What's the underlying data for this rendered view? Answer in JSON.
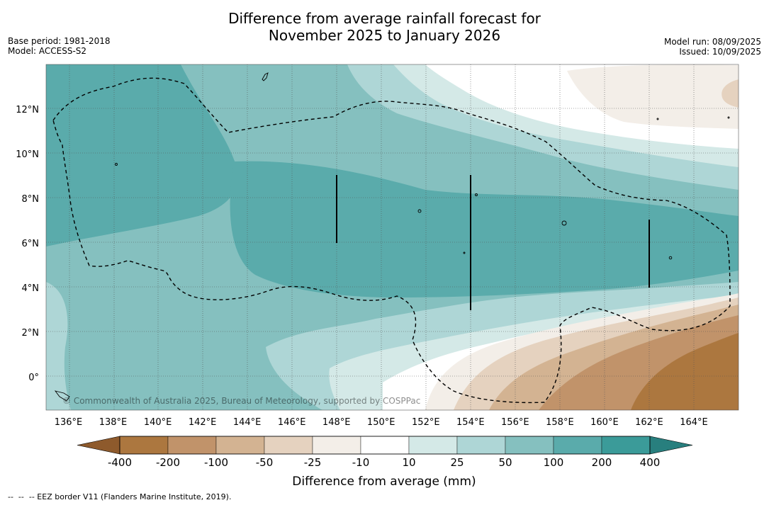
{
  "title_line1": "Difference from average rainfall forecast for",
  "title_line2": "November 2025 to January 2026",
  "base_period": "Base period: 1981-2018",
  "model": "Model: ACCESS-S2",
  "model_run": "Model run: 08/09/2025",
  "issued": "Issued: 10/09/2025",
  "copyright": "© Commonwealth of Australia 2025, Bureau of Meteorology, supported by COSPPac",
  "footnote": "--  --  -- EEZ border V11 (Flanders Marine Institute, 2019).",
  "map": {
    "lon_range": [
      135,
      166
    ],
    "lat_range": [
      -1.5,
      14
    ],
    "lon_ticks": [
      "136°E",
      "138°E",
      "140°E",
      "142°E",
      "144°E",
      "146°E",
      "148°E",
      "150°E",
      "152°E",
      "154°E",
      "156°E",
      "158°E",
      "160°E",
      "162°E",
      "164°E"
    ],
    "lat_ticks": [
      "12°N",
      "10°N",
      "8°N",
      "6°N",
      "4°N",
      "2°N",
      "0°"
    ],
    "gridlines": true
  },
  "legend": {
    "title": "Difference from average (mm)",
    "labels": [
      "-400",
      "-200",
      "-100",
      "-50",
      "-25",
      "-10",
      "10",
      "25",
      "50",
      "100",
      "200",
      "400"
    ],
    "colors": [
      "#8e5a2c",
      "#ac773f",
      "#c1936a",
      "#d3b392",
      "#e5d2bf",
      "#f3eee8",
      "#ffffff",
      "#d4e9e7",
      "#aed6d6",
      "#85c0bf",
      "#5aabab",
      "#3b9b99",
      "#287f7e"
    ]
  }
}
